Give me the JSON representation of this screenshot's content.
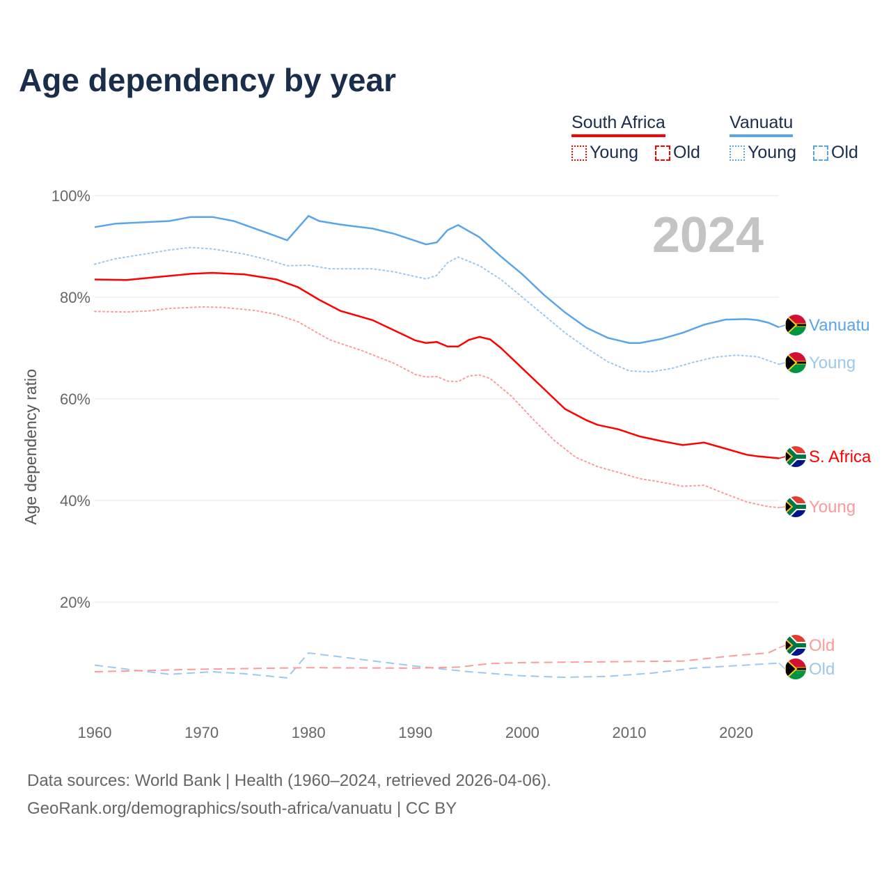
{
  "title": "Age dependency by year",
  "legend": {
    "groups": [
      {
        "name": "South Africa",
        "color": "#ff0000",
        "items": [
          "Young",
          "Old"
        ]
      },
      {
        "name": "Vanuatu",
        "color": "#5aa5ea",
        "items": [
          "Young",
          "Old"
        ]
      }
    ]
  },
  "year_watermark": "2024",
  "footer": {
    "line1": "Data sources: World Bank | Health (1960–2024, retrieved 2026-04-06).",
    "line2": "GeoRank.org/demographics/south-africa/vanuatu | CC BY"
  },
  "chart_data": {
    "type": "line",
    "title": "Age dependency by year",
    "xlabel": "",
    "ylabel": "Age dependency ratio",
    "xlim": [
      1960,
      2024
    ],
    "ylim": [
      0,
      100
    ],
    "x_ticks": [
      "1960",
      "1970",
      "1980",
      "1990",
      "2000",
      "2010",
      "2020"
    ],
    "y_ticks": [
      "20%",
      "40%",
      "60%",
      "80%",
      "100%"
    ],
    "grid": true,
    "series": [
      {
        "name": "Vanuatu",
        "end_label": "Vanuatu",
        "color": "#5aa5ea",
        "dash": "solid",
        "flag": "vanuatu",
        "points": [
          [
            1960,
            93.8
          ],
          [
            1962,
            94.5
          ],
          [
            1965,
            94.8
          ],
          [
            1967,
            95
          ],
          [
            1969,
            95.8
          ],
          [
            1971,
            95.8
          ],
          [
            1973,
            95
          ],
          [
            1975,
            93.5
          ],
          [
            1977,
            92
          ],
          [
            1978,
            91.2
          ],
          [
            1980,
            96
          ],
          [
            1981,
            95
          ],
          [
            1983,
            94.3
          ],
          [
            1986,
            93.5
          ],
          [
            1988,
            92.5
          ],
          [
            1991,
            90.4
          ],
          [
            1992,
            90.8
          ],
          [
            1993,
            93.2
          ],
          [
            1994,
            94.2
          ],
          [
            1996,
            91.8
          ],
          [
            1998,
            88
          ],
          [
            2000,
            84.5
          ],
          [
            2002,
            80.5
          ],
          [
            2004,
            77
          ],
          [
            2006,
            74
          ],
          [
            2008,
            72
          ],
          [
            2010,
            71
          ],
          [
            2011,
            71
          ],
          [
            2013,
            71.8
          ],
          [
            2015,
            73
          ],
          [
            2017,
            74.6
          ],
          [
            2019,
            75.6
          ],
          [
            2021,
            75.7
          ],
          [
            2022,
            75.5
          ],
          [
            2023,
            75
          ],
          [
            2024,
            74.1
          ]
        ]
      },
      {
        "name": "Vanuatu Young",
        "end_label": "Young",
        "color": "#9cc8f0",
        "dash": "dotted",
        "flag": "vanuatu",
        "points": [
          [
            1960,
            86.5
          ],
          [
            1962,
            87.6
          ],
          [
            1965,
            88.6
          ],
          [
            1967,
            89.3
          ],
          [
            1969,
            89.8
          ],
          [
            1971,
            89.5
          ],
          [
            1974,
            88.5
          ],
          [
            1976,
            87.5
          ],
          [
            1978,
            86.2
          ],
          [
            1980,
            86.3
          ],
          [
            1982,
            85.6
          ],
          [
            1986,
            85.6
          ],
          [
            1988,
            85
          ],
          [
            1991,
            83.6
          ],
          [
            1992,
            84.3
          ],
          [
            1993,
            86.8
          ],
          [
            1994,
            87.9
          ],
          [
            1996,
            86.2
          ],
          [
            1998,
            83.5
          ],
          [
            2000,
            80
          ],
          [
            2002,
            76.5
          ],
          [
            2004,
            73
          ],
          [
            2006,
            70
          ],
          [
            2008,
            67.3
          ],
          [
            2010,
            65.5
          ],
          [
            2012,
            65.3
          ],
          [
            2014,
            66
          ],
          [
            2016,
            67.2
          ],
          [
            2018,
            68.2
          ],
          [
            2020,
            68.6
          ],
          [
            2022,
            68.3
          ],
          [
            2024,
            66.8
          ]
        ]
      },
      {
        "name": "Vanuatu Old",
        "end_label": "Old",
        "color": "#9cc8f0",
        "dash": "dashed",
        "flag": "vanuatu",
        "points": [
          [
            1960,
            7.6
          ],
          [
            1963,
            6.8
          ],
          [
            1967,
            5.8
          ],
          [
            1971,
            6.3
          ],
          [
            1974,
            5.9
          ],
          [
            1978,
            5.1
          ],
          [
            1980,
            10
          ],
          [
            1985,
            8.7
          ],
          [
            1990,
            7.4
          ],
          [
            1995,
            6.3
          ],
          [
            2000,
            5.5
          ],
          [
            2004,
            5.2
          ],
          [
            2008,
            5.4
          ],
          [
            2012,
            6
          ],
          [
            2016,
            7
          ],
          [
            2020,
            7.5
          ],
          [
            2024,
            8
          ]
        ]
      },
      {
        "name": "South Africa",
        "end_label": "S. Africa",
        "color": "#ff0000",
        "dash": "solid",
        "flag": "south-africa",
        "points": [
          [
            1960,
            83.5
          ],
          [
            1963,
            83.4
          ],
          [
            1966,
            84
          ],
          [
            1969,
            84.6
          ],
          [
            1971,
            84.8
          ],
          [
            1974,
            84.5
          ],
          [
            1977,
            83.5
          ],
          [
            1979,
            82
          ],
          [
            1981,
            79.5
          ],
          [
            1983,
            77.3
          ],
          [
            1986,
            75.5
          ],
          [
            1989,
            72.5
          ],
          [
            1990,
            71.5
          ],
          [
            1991,
            71
          ],
          [
            1992,
            71.2
          ],
          [
            1993,
            70.3
          ],
          [
            1994,
            70.3
          ],
          [
            1995,
            71.6
          ],
          [
            1996,
            72.2
          ],
          [
            1997,
            71.7
          ],
          [
            1998,
            70
          ],
          [
            2000,
            66
          ],
          [
            2002,
            62
          ],
          [
            2004,
            58
          ],
          [
            2006,
            55.8
          ],
          [
            2007,
            54.9
          ],
          [
            2009,
            54
          ],
          [
            2011,
            52.6
          ],
          [
            2013,
            51.7
          ],
          [
            2015,
            50.9
          ],
          [
            2017,
            51.4
          ],
          [
            2019,
            50.2
          ],
          [
            2021,
            49
          ],
          [
            2022,
            48.7
          ],
          [
            2024,
            48.3
          ]
        ]
      },
      {
        "name": "South Africa Young",
        "end_label": "Young",
        "color": "#ff9a9a",
        "dash": "dotted",
        "flag": "south-africa",
        "points": [
          [
            1960,
            77.2
          ],
          [
            1963,
            77.1
          ],
          [
            1965,
            77.3
          ],
          [
            1967,
            77.8
          ],
          [
            1970,
            78.1
          ],
          [
            1972,
            78
          ],
          [
            1975,
            77.4
          ],
          [
            1977,
            76.6
          ],
          [
            1979,
            75.2
          ],
          [
            1981,
            72.8
          ],
          [
            1982,
            71.6
          ],
          [
            1985,
            69.5
          ],
          [
            1988,
            67
          ],
          [
            1990,
            64.8
          ],
          [
            1991,
            64.3
          ],
          [
            1992,
            64.4
          ],
          [
            1993,
            63.5
          ],
          [
            1994,
            63.4
          ],
          [
            1995,
            64.5
          ],
          [
            1996,
            64.7
          ],
          [
            1997,
            64
          ],
          [
            1999,
            60.5
          ],
          [
            2001,
            56
          ],
          [
            2003,
            51.8
          ],
          [
            2005,
            48.5
          ],
          [
            2007,
            46.7
          ],
          [
            2009,
            45.5
          ],
          [
            2011,
            44.3
          ],
          [
            2013,
            43.6
          ],
          [
            2015,
            42.8
          ],
          [
            2017,
            43
          ],
          [
            2019,
            41.3
          ],
          [
            2021,
            39.7
          ],
          [
            2023,
            38.8
          ],
          [
            2024,
            38.6
          ]
        ]
      },
      {
        "name": "South Africa Old",
        "end_label": "Old",
        "color": "#ff9a9a",
        "dash": "dashed",
        "flag": "south-africa",
        "points": [
          [
            1960,
            6.3
          ],
          [
            1970,
            6.8
          ],
          [
            1980,
            7.1
          ],
          [
            1990,
            7
          ],
          [
            1994,
            7.2
          ],
          [
            1997,
            7.9
          ],
          [
            2000,
            8.1
          ],
          [
            2010,
            8.3
          ],
          [
            2015,
            8.4
          ],
          [
            2020,
            9.5
          ],
          [
            2023,
            10
          ],
          [
            2024,
            11
          ]
        ]
      }
    ]
  }
}
